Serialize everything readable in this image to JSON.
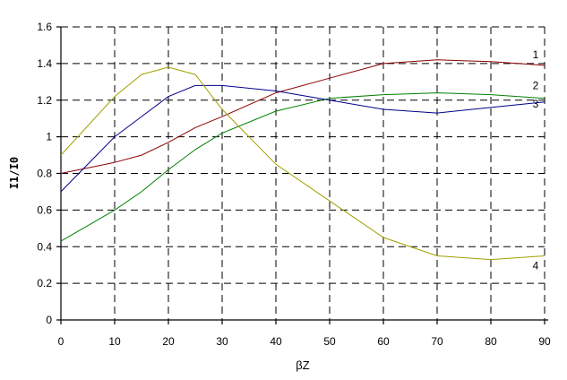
{
  "chart_data": {
    "type": "line",
    "title": "",
    "xlabel": "βZ",
    "ylabel": "I1/I0",
    "xlim": [
      0,
      90
    ],
    "ylim": [
      0,
      1.6
    ],
    "x_ticks": [
      "0",
      "10",
      "20",
      "30",
      "40",
      "50",
      "60",
      "70",
      "80",
      "90"
    ],
    "y_ticks": [
      "0",
      "0.2",
      "0.4",
      "0.6",
      "0.8",
      "1",
      "1.2",
      "1.4",
      "1.6"
    ],
    "grid": true,
    "series": [
      {
        "name": "1",
        "color": "#8b0000",
        "x": [
          0,
          10,
          15,
          20,
          25,
          30,
          40,
          50,
          60,
          70,
          80,
          90
        ],
        "y": [
          0.8,
          0.86,
          0.9,
          0.97,
          1.05,
          1.11,
          1.24,
          1.32,
          1.4,
          1.42,
          1.41,
          1.39
        ]
      },
      {
        "name": "2",
        "color": "#008000",
        "x": [
          0,
          10,
          15,
          20,
          25,
          30,
          40,
          50,
          60,
          70,
          80,
          90
        ],
        "y": [
          0.43,
          0.6,
          0.7,
          0.82,
          0.93,
          1.02,
          1.14,
          1.21,
          1.23,
          1.24,
          1.23,
          1.21
        ]
      },
      {
        "name": "3",
        "color": "#00008b",
        "x": [
          0,
          10,
          15,
          20,
          25,
          30,
          40,
          50,
          60,
          70,
          80,
          90
        ],
        "y": [
          0.7,
          1.0,
          1.11,
          1.22,
          1.28,
          1.28,
          1.25,
          1.2,
          1.15,
          1.13,
          1.16,
          1.19
        ]
      },
      {
        "name": "4",
        "color": "#a0a000",
        "x": [
          0,
          10,
          15,
          20,
          25,
          30,
          40,
          50,
          60,
          70,
          80,
          90
        ],
        "y": [
          0.9,
          1.22,
          1.34,
          1.38,
          1.34,
          1.15,
          0.85,
          0.65,
          0.45,
          0.35,
          0.33,
          0.35
        ]
      }
    ]
  }
}
